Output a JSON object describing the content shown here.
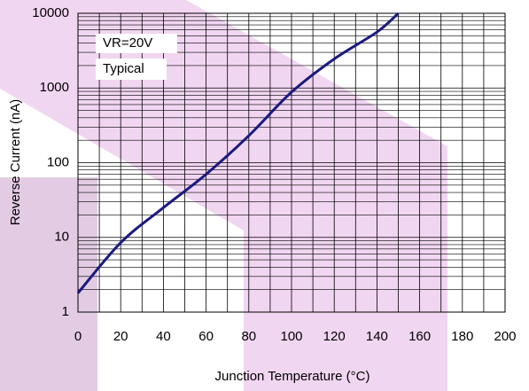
{
  "chart_data": {
    "type": "line",
    "x_label": "Junction Temperature (°C)",
    "y_label": "Reverse Current (nA)",
    "annotations": [
      "VR=20V",
      "Typical"
    ],
    "x": [
      0,
      20,
      40,
      60,
      80,
      100,
      120,
      140,
      150
    ],
    "values": [
      1.8,
      8.5,
      25,
      70,
      230,
      880,
      2450,
      5600,
      10000
    ],
    "color": "#1a1a80",
    "xlim": [
      0,
      200
    ],
    "xticks": [
      0,
      20,
      40,
      60,
      80,
      100,
      120,
      140,
      160,
      180,
      200
    ],
    "ylim": [
      1,
      10000
    ],
    "yticks": [
      1,
      10,
      100,
      1000,
      10000
    ],
    "log_y": true,
    "grid": true
  }
}
